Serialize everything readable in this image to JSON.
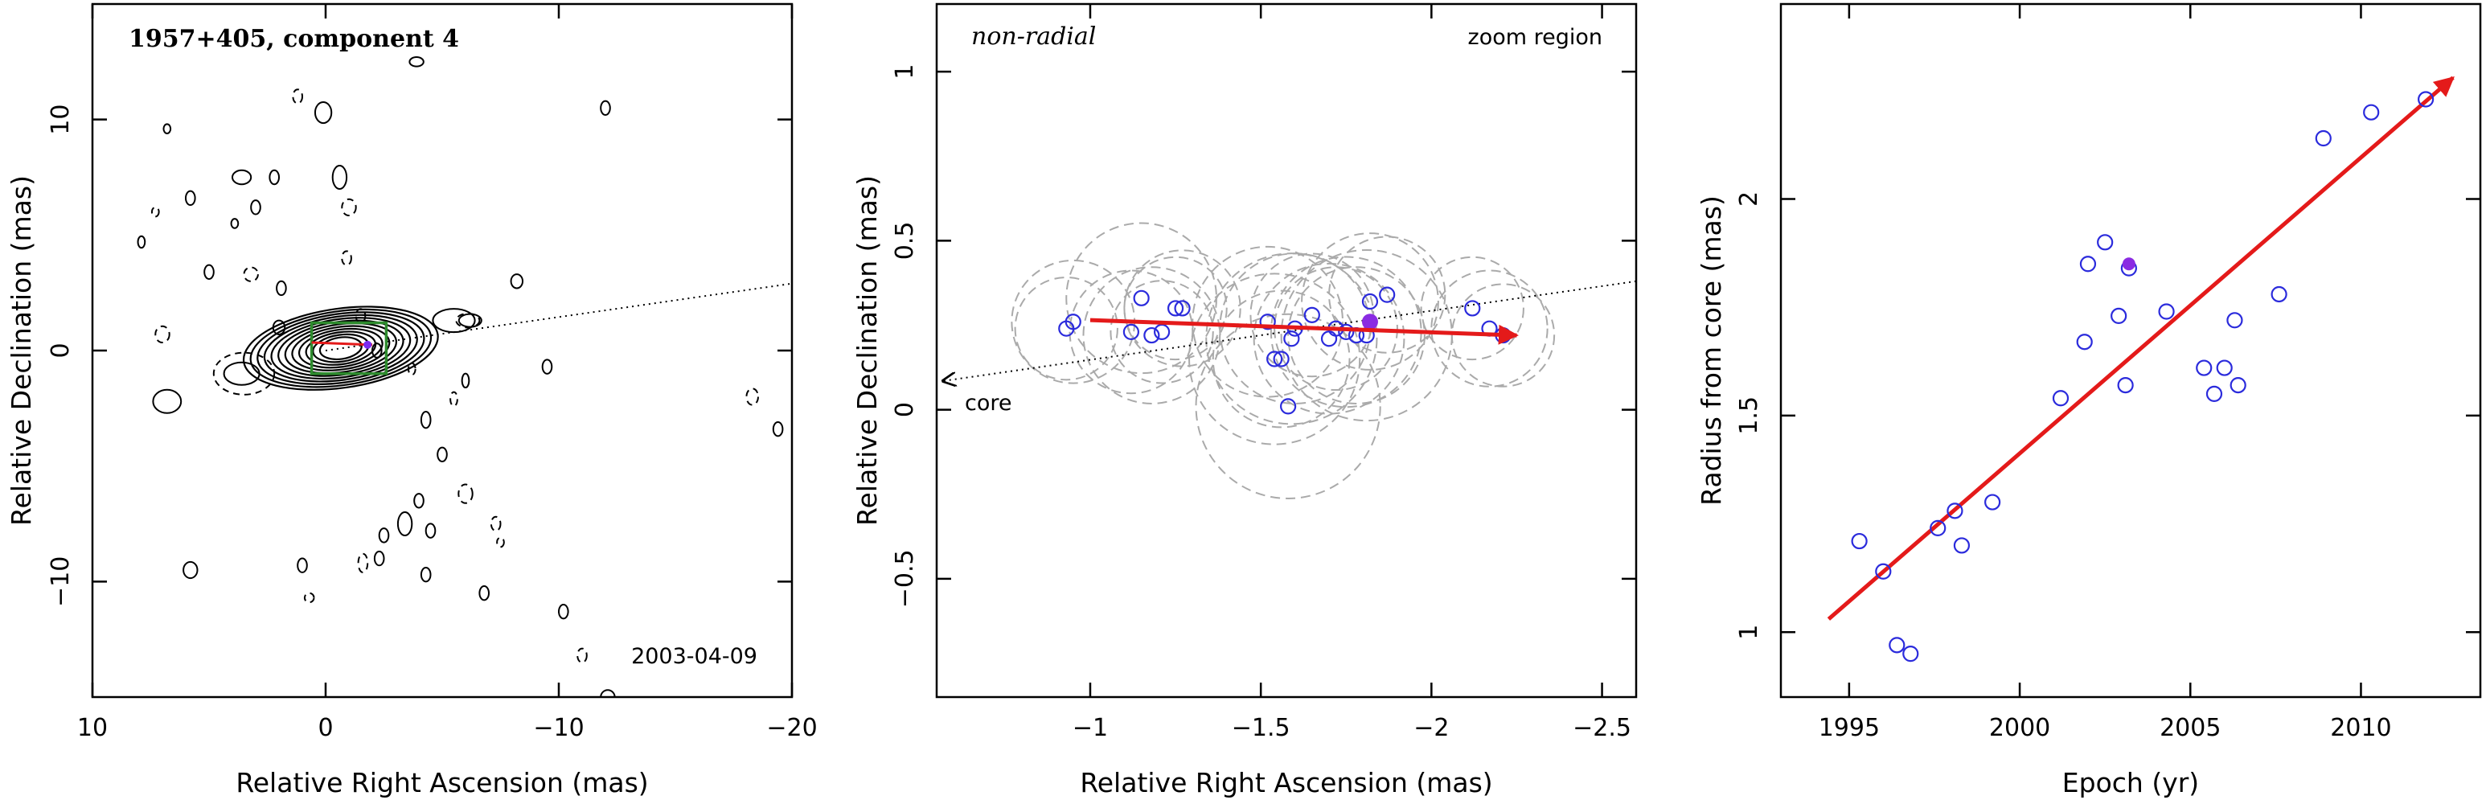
{
  "chart_data": [
    {
      "type": "contour",
      "title": "1957+405, component 4",
      "xlabel": "Relative Right Ascension (mas)",
      "ylabel": "Relative Declination (mas)",
      "xlim": [
        10,
        -20
      ],
      "ylim": [
        -15,
        15
      ],
      "xticks": [
        10,
        0,
        -10,
        -20
      ],
      "yticks": [
        -10,
        0,
        10
      ],
      "date_label": "2003-04-09",
      "jet_direction_line": {
        "x": [
          0,
          -20
        ],
        "y": [
          0,
          2.9
        ]
      },
      "zoom_box": {
        "x": [
          0.6,
          -2.6
        ],
        "y": [
          -1.0,
          1.2
        ]
      },
      "component_position": {
        "x": -1.8,
        "y": 0.25
      },
      "contour_style": {
        "color": "#000000",
        "zoom_box_color": "#2e8b2e",
        "marker_color": "#7b2cf0"
      }
    },
    {
      "type": "scatter",
      "title": "non-radial",
      "annotation": "zoom region",
      "core_label": "core",
      "xlabel": "Relative Right Ascension (mas)",
      "ylabel": "Relative Declination (mas)",
      "xlim": [
        -0.55,
        -2.6
      ],
      "ylim": [
        -0.85,
        1.2
      ],
      "xticks": [
        -1,
        -1.5,
        -2,
        -2.5
      ],
      "xtick_labels": [
        "−1",
        "−1.5",
        "−2",
        "−2.5"
      ],
      "yticks": [
        -0.5,
        0,
        0.5,
        1
      ],
      "ytick_labels": [
        "−0.5",
        "0",
        "0.5",
        "1"
      ],
      "points": {
        "x": [
          -0.93,
          -0.95,
          -1.12,
          -1.15,
          -1.18,
          -1.21,
          -1.25,
          -1.27,
          -1.52,
          -1.54,
          -1.56,
          -1.58,
          -1.59,
          -1.6,
          -1.65,
          -1.7,
          -1.72,
          -1.75,
          -1.78,
          -1.81,
          -1.82,
          -1.87,
          -2.12,
          -2.17,
          -2.21
        ],
        "y": [
          0.24,
          0.26,
          0.23,
          0.33,
          0.22,
          0.23,
          0.3,
          0.3,
          0.26,
          0.15,
          0.15,
          0.01,
          0.21,
          0.24,
          0.28,
          0.21,
          0.24,
          0.23,
          0.22,
          0.22,
          0.32,
          0.34,
          0.3,
          0.24,
          0.22
        ],
        "error_radius": [
          0.15,
          0.18,
          0.18,
          0.22,
          0.2,
          0.15,
          0.15,
          0.17,
          0.22,
          0.25,
          0.2,
          0.27,
          0.25,
          0.22,
          0.18,
          0.22,
          0.18,
          0.22,
          0.2,
          0.25,
          0.2,
          0.17,
          0.15,
          0.17,
          0.15
        ]
      },
      "highlighted_point": {
        "x": -1.82,
        "y": 0.26
      },
      "motion_vector": {
        "x": [
          -1.0,
          -2.25
        ],
        "y": [
          0.265,
          0.22
        ]
      },
      "core_direction_line": {
        "x": [
          -0.55,
          -2.6
        ],
        "y": [
          0.085,
          0.38
        ]
      },
      "colors": {
        "points": "#2b2bdc",
        "highlight": "#8a2be2",
        "vector": "#e41a1a",
        "errors": "#aaaaaa"
      }
    },
    {
      "type": "scatter",
      "xlabel": "Epoch (yr)",
      "ylabel": "Radius from core (mas)",
      "xlim": [
        1993,
        2013.5
      ],
      "ylim": [
        0.85,
        2.45
      ],
      "xticks": [
        1995,
        2000,
        2005,
        2010
      ],
      "yticks": [
        1,
        1.5,
        2
      ],
      "ytick_labels": [
        "1",
        "1.5",
        "2"
      ],
      "points": {
        "x": [
          1995.3,
          1996.0,
          1996.4,
          1996.8,
          1997.6,
          1998.1,
          1998.3,
          1999.2,
          2001.2,
          2001.9,
          2002.0,
          2002.5,
          2002.9,
          2003.1,
          2003.2,
          2004.3,
          2005.4,
          2005.7,
          2006.0,
          2006.3,
          2006.4,
          2007.6,
          2008.9,
          2010.3,
          2011.9
        ],
        "y": [
          1.21,
          1.14,
          0.97,
          0.95,
          1.24,
          1.28,
          1.2,
          1.3,
          1.54,
          1.67,
          1.85,
          1.9,
          1.73,
          1.57,
          1.84,
          1.74,
          1.61,
          1.55,
          1.61,
          1.72,
          1.57,
          1.78,
          2.14,
          2.2,
          2.23
        ]
      },
      "highlighted_point": {
        "x": 2003.2,
        "y": 1.85
      },
      "fit_line": {
        "x": [
          1994.4,
          2012.7
        ],
        "y": [
          1.03,
          2.28
        ]
      },
      "colors": {
        "points": "#2b2bdc",
        "highlight": "#8a2be2",
        "fit": "#e41a1a"
      }
    }
  ]
}
